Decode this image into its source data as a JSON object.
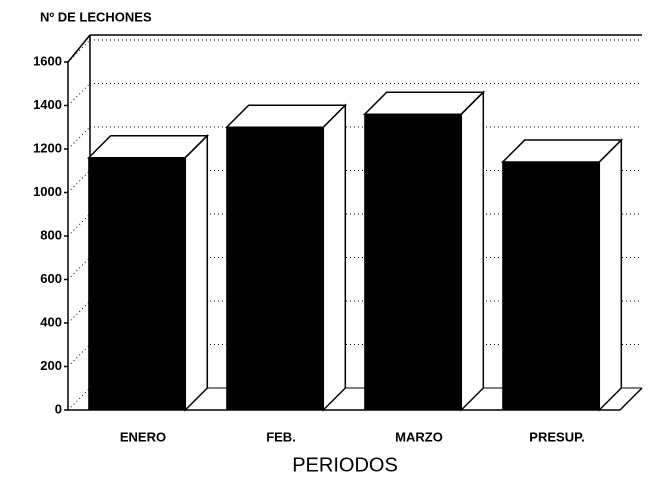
{
  "chart_data": {
    "type": "bar3d",
    "title": "Nº DE LECHONES",
    "x_label": "PERIODOS",
    "categories": [
      "ENERO",
      "FEB.",
      "MARZO",
      "PRESUP."
    ],
    "values": [
      1160,
      1300,
      1360,
      1140
    ],
    "color": "#000000",
    "ylim": [
      0,
      1600
    ],
    "yticks": [
      0,
      200,
      400,
      600,
      800,
      1000,
      1200,
      1400,
      1600
    ],
    "grid": true
  }
}
